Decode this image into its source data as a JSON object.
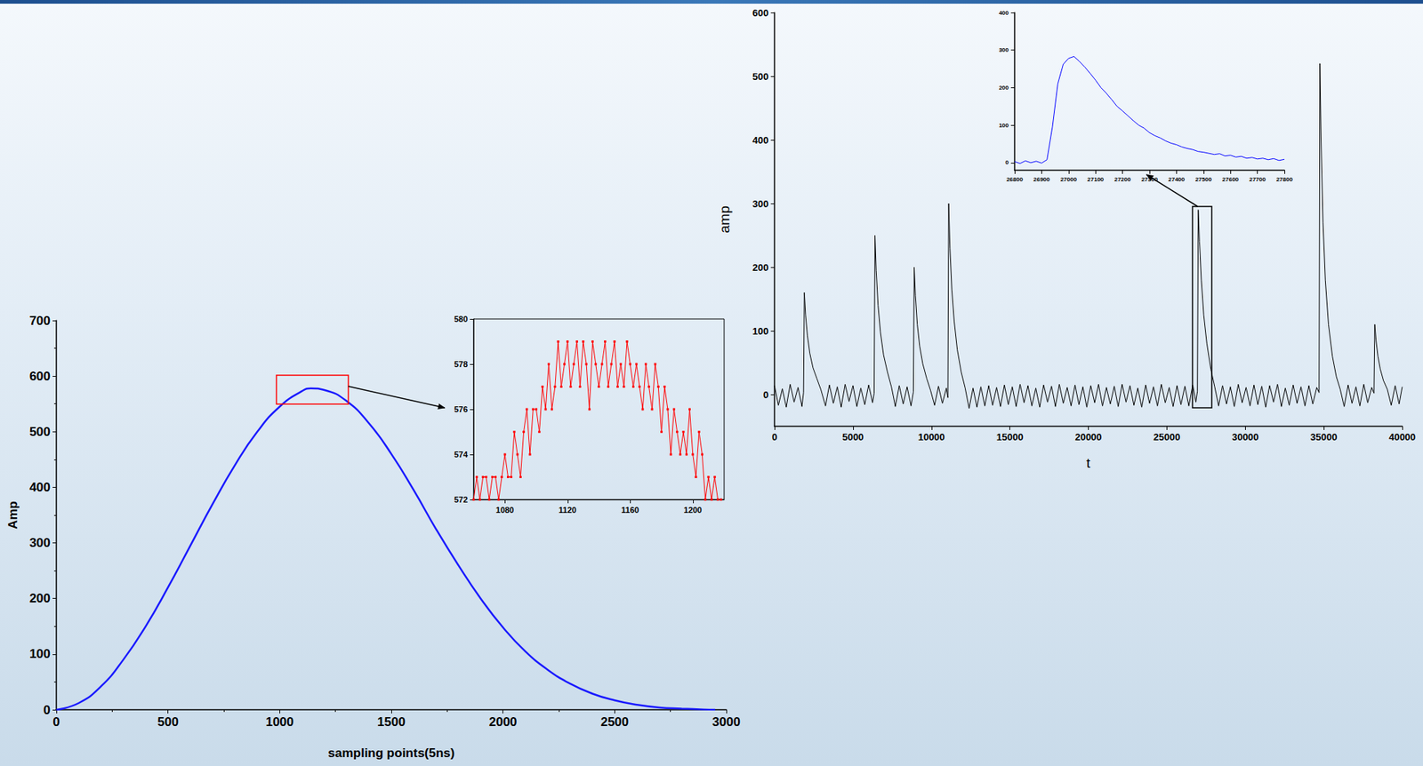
{
  "chart_data": [
    {
      "type": "line",
      "x_label": "sampling points(5ns)",
      "y_label": "Amp",
      "color": "#1a1aff",
      "marker": "none",
      "line_style": "solid",
      "grid": false,
      "xlim": [
        0,
        3000
      ],
      "xticks": [
        0,
        500,
        1000,
        1500,
        2000,
        2500,
        3000
      ],
      "ylim": [
        0,
        700
      ],
      "yticks": [
        0,
        100,
        200,
        300,
        400,
        500,
        600,
        700
      ],
      "x": [
        0,
        100,
        200,
        300,
        400,
        500,
        600,
        700,
        800,
        900,
        1000,
        1100,
        1140,
        1200,
        1300,
        1400,
        1500,
        1600,
        1700,
        1800,
        1900,
        2000,
        2100,
        2200,
        2300,
        2400,
        2500,
        2600,
        2700,
        2800,
        2900,
        2950
      ],
      "values": [
        0,
        12,
        42,
        90,
        150,
        220,
        295,
        370,
        440,
        500,
        545,
        573,
        578,
        575,
        555,
        515,
        460,
        395,
        325,
        260,
        200,
        148,
        105,
        72,
        47,
        29,
        17,
        9,
        4,
        2,
        0.5,
        0
      ]
    },
    {
      "type": "line",
      "color": "#ff0000",
      "marker": "square",
      "line_style": "solid",
      "grid": false,
      "xlim": [
        1060,
        1220
      ],
      "xticks": [
        1080,
        1120,
        1160,
        1200
      ],
      "ylim": [
        572,
        580
      ],
      "yticks": [
        572,
        574,
        576,
        578,
        580
      ],
      "x": [
        1060,
        1062,
        1064,
        1066,
        1068,
        1070,
        1072,
        1074,
        1076,
        1078,
        1080,
        1082,
        1084,
        1086,
        1088,
        1090,
        1092,
        1094,
        1096,
        1098,
        1100,
        1102,
        1104,
        1106,
        1108,
        1110,
        1112,
        1114,
        1116,
        1118,
        1120,
        1122,
        1124,
        1126,
        1128,
        1130,
        1132,
        1134,
        1136,
        1138,
        1140,
        1142,
        1144,
        1146,
        1148,
        1150,
        1152,
        1154,
        1156,
        1158,
        1160,
        1162,
        1164,
        1166,
        1168,
        1170,
        1172,
        1174,
        1176,
        1178,
        1180,
        1182,
        1184,
        1186,
        1188,
        1190,
        1192,
        1194,
        1196,
        1198,
        1200,
        1202,
        1204,
        1206,
        1208,
        1210,
        1212,
        1214,
        1216,
        1218
      ],
      "values": [
        572,
        573,
        572,
        573,
        573,
        572,
        573,
        573,
        572,
        573,
        574,
        573,
        573,
        575,
        574,
        573,
        575,
        576,
        574,
        576,
        576,
        575,
        577,
        576,
        578,
        576,
        577,
        579,
        577,
        578,
        579,
        577,
        578,
        579,
        577,
        579,
        578,
        576,
        579,
        578,
        577,
        578,
        579,
        577,
        578,
        579,
        577,
        578,
        577,
        579,
        578,
        577,
        578,
        577,
        576,
        578,
        577,
        576,
        578,
        577,
        575,
        577,
        576,
        574,
        576,
        575,
        574,
        575,
        574,
        576,
        574,
        573,
        575,
        574,
        572,
        573,
        572,
        573,
        572,
        572
      ]
    },
    {
      "type": "line",
      "x_label": "t",
      "y_label": "amp",
      "color": "#000000",
      "marker": "none",
      "line_style": "solid",
      "grid": false,
      "xlim": [
        0,
        40000
      ],
      "xticks": [
        0,
        5000,
        10000,
        15000,
        20000,
        25000,
        30000,
        35000,
        40000
      ],
      "ylim": [
        -50,
        600
      ],
      "yticks": [
        0,
        100,
        200,
        300,
        400,
        500,
        600
      ],
      "x": [
        0,
        250,
        500,
        750,
        1000,
        1250,
        1500,
        1750,
        1850,
        1900,
        1980,
        2100,
        2250,
        2450,
        2700,
        2950,
        3250,
        3500,
        3750,
        4000,
        4250,
        4500,
        4750,
        5000,
        5250,
        5500,
        5750,
        6000,
        6250,
        6350,
        6400,
        6480,
        6600,
        6750,
        6950,
        7200,
        7450,
        7700,
        7950,
        8200,
        8450,
        8700,
        8850,
        8900,
        8980,
        9100,
        9250,
        9450,
        9700,
        9950,
        10200,
        10450,
        10700,
        10950,
        11050,
        11100,
        11180,
        11300,
        11450,
        11650,
        11900,
        12150,
        12400,
        12650,
        12900,
        13150,
        13400,
        13650,
        13900,
        14150,
        14400,
        14650,
        14900,
        15150,
        15400,
        15650,
        15900,
        16150,
        16400,
        16650,
        16900,
        17150,
        17400,
        17650,
        17900,
        18150,
        18400,
        18650,
        18900,
        19150,
        19400,
        19650,
        19900,
        20150,
        20400,
        20650,
        20900,
        21150,
        21400,
        21650,
        21900,
        22150,
        22400,
        22650,
        22900,
        23150,
        23400,
        23650,
        23900,
        24150,
        24400,
        24650,
        24900,
        25150,
        25400,
        25650,
        25900,
        26150,
        26400,
        26650,
        26850,
        26950,
        27000,
        27080,
        27200,
        27350,
        27550,
        27800,
        28050,
        28300,
        28550,
        28800,
        29050,
        29300,
        29550,
        29800,
        30050,
        30300,
        30550,
        30800,
        31050,
        31300,
        31550,
        31800,
        32050,
        32300,
        32550,
        32800,
        33050,
        33300,
        33550,
        33800,
        34050,
        34300,
        34550,
        34700,
        34750,
        34830,
        34950,
        35100,
        35300,
        35550,
        35800,
        36050,
        36300,
        36550,
        36800,
        37050,
        37300,
        37550,
        37800,
        38050,
        38200,
        38250,
        38330,
        38450,
        38600,
        38800,
        39050,
        39300,
        39550,
        39800,
        40000
      ],
      "values": [
        14,
        -17,
        9,
        -20,
        16,
        -12,
        11,
        -19,
        3,
        160,
        125,
        92,
        65,
        42,
        25,
        8,
        -18,
        15,
        -14,
        12,
        -20,
        16,
        -11,
        14,
        -19,
        10,
        -16,
        15,
        -13,
        2,
        250,
        195,
        140,
        98,
        62,
        35,
        12,
        -19,
        14,
        -15,
        12,
        -18,
        4,
        200,
        155,
        110,
        76,
        48,
        25,
        6,
        -17,
        13,
        -14,
        10,
        -5,
        300,
        230,
        165,
        115,
        70,
        35,
        10,
        -22,
        10,
        -20,
        12,
        -18,
        14,
        -17,
        11,
        -19,
        15,
        -16,
        12,
        -19,
        16,
        -13,
        14,
        -18,
        10,
        -20,
        15,
        -12,
        13,
        -19,
        16,
        -14,
        11,
        -18,
        15,
        -16,
        12,
        -20,
        14,
        -13,
        16,
        -18,
        11,
        -15,
        13,
        -19,
        16,
        -12,
        14,
        -17,
        10,
        -20,
        15,
        -14,
        12,
        -18,
        16,
        -13,
        11,
        -19,
        14,
        -16,
        13,
        -18,
        15,
        -12,
        5,
        290,
        240,
        180,
        125,
        80,
        40,
        12,
        -18,
        14,
        -15,
        12,
        -19,
        16,
        -13,
        11,
        -18,
        15,
        -16,
        13,
        -20,
        14,
        -12,
        16,
        -19,
        10,
        -17,
        15,
        -14,
        12,
        -18,
        14,
        -15,
        11,
        3,
        520,
        400,
        270,
        180,
        110,
        60,
        28,
        8,
        -19,
        15,
        -14,
        12,
        -18,
        16,
        -13,
        11,
        2,
        110,
        85,
        60,
        40,
        22,
        8,
        -17,
        14,
        -15,
        12
      ]
    },
    {
      "type": "line",
      "color": "#0000ff",
      "marker": "none",
      "line_style": "solid",
      "grid": false,
      "xlim": [
        26800,
        27800
      ],
      "xticks": [
        26800,
        26900,
        27000,
        27100,
        27200,
        27300,
        27400,
        27500,
        27600,
        27700,
        27800
      ],
      "ylim": [
        -20,
        400
      ],
      "yticks": [
        0,
        100,
        200,
        300,
        400
      ],
      "x": [
        26800,
        26820,
        26840,
        26860,
        26880,
        26900,
        26920,
        26940,
        26960,
        26980,
        27000,
        27020,
        27040,
        27060,
        27080,
        27100,
        27120,
        27140,
        27160,
        27180,
        27200,
        27220,
        27240,
        27260,
        27280,
        27300,
        27320,
        27340,
        27360,
        27380,
        27400,
        27420,
        27440,
        27460,
        27480,
        27500,
        27520,
        27540,
        27560,
        27580,
        27600,
        27620,
        27640,
        27660,
        27680,
        27700,
        27720,
        27740,
        27760,
        27780,
        27800
      ],
      "values": [
        3,
        -2,
        5,
        0,
        4,
        -1,
        8,
        95,
        210,
        262,
        278,
        283,
        270,
        255,
        238,
        220,
        200,
        185,
        168,
        150,
        138,
        125,
        112,
        100,
        92,
        80,
        72,
        66,
        58,
        52,
        48,
        42,
        38,
        35,
        30,
        28,
        25,
        22,
        24,
        18,
        20,
        15,
        17,
        12,
        14,
        10,
        12,
        8,
        11,
        6,
        9
      ]
    }
  ]
}
